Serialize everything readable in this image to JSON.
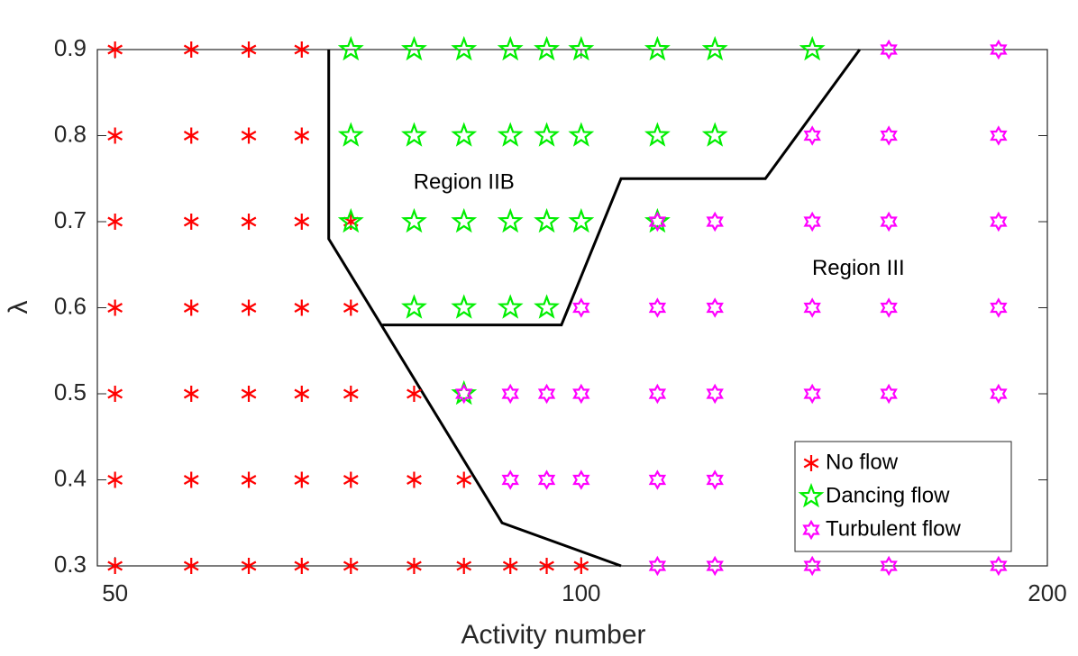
{
  "chart_data": {
    "type": "scatter",
    "xlabel": "Activity number",
    "ylabel": "λ",
    "xscale": "log",
    "xlim": [
      48.7,
      200
    ],
    "ylim": [
      0.3,
      0.9
    ],
    "xticks": [
      50,
      100,
      200
    ],
    "yticks": [
      0.3,
      0.4,
      0.5,
      0.6,
      0.7,
      0.8,
      0.9
    ],
    "legend": "lower right",
    "series": [
      {
        "name": "No flow",
        "color": "#ff0000",
        "marker": "asterisk",
        "x": [
          50,
          56,
          61,
          66,
          50,
          56,
          61,
          66,
          50,
          56,
          61,
          66,
          71,
          50,
          56,
          61,
          66,
          71,
          50,
          56,
          61,
          66,
          71,
          78,
          50,
          56,
          61,
          66,
          71,
          78,
          84,
          50,
          56,
          61,
          66,
          71,
          78,
          84,
          90,
          95,
          100
        ],
        "y": [
          0.9,
          0.9,
          0.9,
          0.9,
          0.8,
          0.8,
          0.8,
          0.8,
          0.7,
          0.7,
          0.7,
          0.7,
          0.7,
          0.6,
          0.6,
          0.6,
          0.6,
          0.6,
          0.5,
          0.5,
          0.5,
          0.5,
          0.5,
          0.5,
          0.4,
          0.4,
          0.4,
          0.4,
          0.4,
          0.4,
          0.4,
          0.3,
          0.3,
          0.3,
          0.3,
          0.3,
          0.3,
          0.3,
          0.3,
          0.3,
          0.3
        ]
      },
      {
        "name": "Dancing flow",
        "color": "#00ee00",
        "marker": "pentagram",
        "x": [
          71,
          78,
          84,
          90,
          95,
          100,
          112,
          122,
          141,
          71,
          78,
          84,
          90,
          95,
          100,
          112,
          122,
          71,
          78,
          84,
          90,
          95,
          100,
          112,
          78,
          84,
          90,
          95,
          84
        ],
        "y": [
          0.9,
          0.9,
          0.9,
          0.9,
          0.9,
          0.9,
          0.9,
          0.9,
          0.9,
          0.8,
          0.8,
          0.8,
          0.8,
          0.8,
          0.8,
          0.8,
          0.8,
          0.7,
          0.7,
          0.7,
          0.7,
          0.7,
          0.7,
          0.7,
          0.6,
          0.6,
          0.6,
          0.6,
          0.5
        ]
      },
      {
        "name": "Turbulent flow",
        "color": "#ff00ff",
        "marker": "hexagram",
        "x": [
          158,
          186,
          141,
          158,
          186,
          112,
          122,
          141,
          158,
          186,
          100,
          112,
          122,
          141,
          158,
          186,
          84,
          90,
          95,
          100,
          112,
          122,
          141,
          158,
          186,
          90,
          95,
          100,
          112,
          122,
          112,
          122,
          141,
          158,
          186
        ],
        "y": [
          0.9,
          0.9,
          0.8,
          0.8,
          0.8,
          0.7,
          0.7,
          0.7,
          0.7,
          0.7,
          0.6,
          0.6,
          0.6,
          0.6,
          0.6,
          0.6,
          0.5,
          0.5,
          0.5,
          0.5,
          0.5,
          0.5,
          0.5,
          0.5,
          0.5,
          0.4,
          0.4,
          0.4,
          0.4,
          0.4,
          0.3,
          0.3,
          0.3,
          0.3,
          0.3
        ]
      }
    ],
    "lines": [
      {
        "color": "#000000",
        "x": [
          68.7,
          68.7,
          88.9,
          106.1
        ],
        "y": [
          0.9,
          0.68,
          0.35,
          0.3
        ]
      },
      {
        "color": "#000000",
        "x": [
          74.4,
          97.1,
          106.1,
          131.5,
          151.3
        ],
        "y": [
          0.58,
          0.58,
          0.75,
          0.75,
          0.9
        ]
      }
    ],
    "annotations": [
      {
        "text": "Region IIB",
        "x": 84,
        "y": 0.745
      },
      {
        "text": "Region III",
        "x": 151,
        "y": 0.645
      }
    ]
  }
}
